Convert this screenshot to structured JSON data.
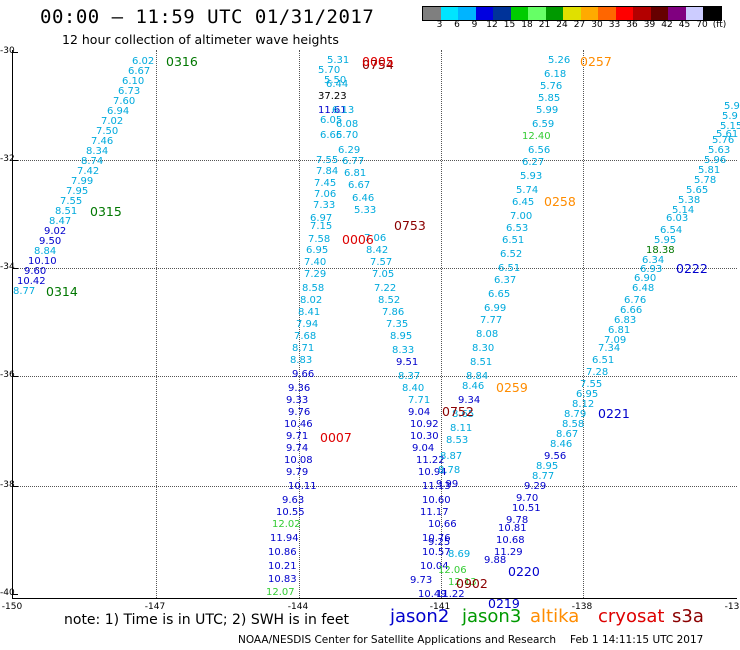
{
  "header": {
    "title": "00:00 – 11:59 UTC 01/31/2017",
    "subtitle": "12 hour collection of altimeter wave heights"
  },
  "colorbar": {
    "colors": [
      "#7f7f7f",
      "#00e5ff",
      "#00b4ff",
      "#0000e0",
      "#003399",
      "#00cc00",
      "#66ff66",
      "#009900",
      "#e0e000",
      "#ffaa00",
      "#ff6600",
      "#ff0000",
      "#b30000",
      "#660000",
      "#800080",
      "#ccccff",
      "#000000"
    ],
    "labels": [
      "3",
      "6",
      "9",
      "12",
      "15",
      "18",
      "21",
      "24",
      "27",
      "30",
      "33",
      "36",
      "39",
      "42",
      "45",
      "70",
      "(ft)"
    ]
  },
  "axes": {
    "y_ticks": [
      "-30",
      "-32",
      "-34",
      "-36",
      "-38",
      "-40"
    ],
    "x_ticks": [
      "-150",
      "-147",
      "-144",
      "-141",
      "-138",
      "-13"
    ]
  },
  "footer": {
    "note": "note: 1) Time is in UTC; 2) SWH is in feet",
    "satellites": [
      {
        "name": "jason2",
        "color": "#0000cc"
      },
      {
        "name": "jason3",
        "color": "#009900"
      },
      {
        "name": "altika",
        "color": "#ff8c00"
      },
      {
        "name": "cryosat",
        "color": "#dd0000"
      },
      {
        "name": "s3a",
        "color": "#8b0000"
      }
    ],
    "credit": "NOAA/NESDIS Center for Satellite Applications and Research",
    "generated": "Feb  1 14:11:15 UTC 2017"
  },
  "colors": {
    "cyan": "#00aadd",
    "blue": "#0000cc",
    "navy": "#000080",
    "green": "#007700",
    "lightgreen": "#33cc33",
    "orange": "#ff8c00",
    "red": "#dd0000",
    "maroon": "#8b0000"
  },
  "track_labels": [
    {
      "text": "0316",
      "color": "#007700"
    },
    {
      "text": "0315",
      "color": "#007700"
    },
    {
      "text": "0314",
      "color": "#007700"
    },
    {
      "text": "0754",
      "color": "#8b0000"
    },
    {
      "text": "0005",
      "color": "#dd0000"
    },
    {
      "text": "0753",
      "color": "#8b0000"
    },
    {
      "text": "0006",
      "color": "#dd0000"
    },
    {
      "text": "0007",
      "color": "#dd0000"
    },
    {
      "text": "0752",
      "color": "#8b0000"
    },
    {
      "text": "0257",
      "color": "#ff8c00"
    },
    {
      "text": "0258",
      "color": "#ff8c00"
    },
    {
      "text": "0259",
      "color": "#ff8c00"
    },
    {
      "text": "0222",
      "color": "#0000cc"
    },
    {
      "text": "0221",
      "color": "#0000cc"
    },
    {
      "text": "0220",
      "color": "#0000cc"
    },
    {
      "text": "0219",
      "color": "#0000cc"
    },
    {
      "text": "0902",
      "color": "#8b0000"
    }
  ],
  "observations": [
    {
      "text": "6.02",
      "color": "#00aadd"
    },
    {
      "text": "6.67",
      "color": "#00aadd"
    },
    {
      "text": "6.10",
      "color": "#00aadd"
    },
    {
      "text": "6.73",
      "color": "#00aadd"
    },
    {
      "text": "7.60",
      "color": "#00aadd"
    },
    {
      "text": "6.94",
      "color": "#00aadd"
    },
    {
      "text": "7.02",
      "color": "#00aadd"
    },
    {
      "text": "7.50",
      "color": "#00aadd"
    },
    {
      "text": "7.46",
      "color": "#00aadd"
    },
    {
      "text": "8.34",
      "color": "#00aadd"
    },
    {
      "text": "8.74",
      "color": "#00aadd"
    },
    {
      "text": "7.42",
      "color": "#00aadd"
    },
    {
      "text": "7.99",
      "color": "#00aadd"
    },
    {
      "text": "7.95",
      "color": "#00aadd"
    },
    {
      "text": "7.55",
      "color": "#00aadd"
    },
    {
      "text": "8.51",
      "color": "#00aadd"
    },
    {
      "text": "8.47",
      "color": "#00aadd"
    },
    {
      "text": "9.02",
      "color": "#0000cc"
    },
    {
      "text": "9.50",
      "color": "#0000cc"
    },
    {
      "text": "8.84",
      "color": "#00aadd"
    },
    {
      "text": "10.10",
      "color": "#0000cc"
    },
    {
      "text": "9.60",
      "color": "#0000cc"
    },
    {
      "text": "10.42",
      "color": "#0000cc"
    },
    {
      "text": "8.77",
      "color": "#00aadd"
    },
    {
      "text": "5.31",
      "color": "#00aadd"
    },
    {
      "text": "5.70",
      "color": "#00aadd"
    },
    {
      "text": "5.50",
      "color": "#00aadd"
    },
    {
      "text": "6.44",
      "color": "#00aadd"
    },
    {
      "text": "37.23",
      "color": "#000000"
    },
    {
      "text": "11.61",
      "color": "#0000cc"
    },
    {
      "text": "6.13",
      "color": "#00aadd"
    },
    {
      "text": "6.08",
      "color": "#00aadd"
    },
    {
      "text": "6.05",
      "color": "#00aadd"
    },
    {
      "text": "6.66",
      "color": "#00aadd"
    },
    {
      "text": "5.70",
      "color": "#00aadd"
    },
    {
      "text": "6.29",
      "color": "#00aadd"
    },
    {
      "text": "6.77",
      "color": "#00aadd"
    },
    {
      "text": "7.55",
      "color": "#00aadd"
    },
    {
      "text": "7.84",
      "color": "#00aadd"
    },
    {
      "text": "6.81",
      "color": "#00aadd"
    },
    {
      "text": "7.45",
      "color": "#00aadd"
    },
    {
      "text": "6.67",
      "color": "#00aadd"
    },
    {
      "text": "7.06",
      "color": "#00aadd"
    },
    {
      "text": "6.46",
      "color": "#00aadd"
    },
    {
      "text": "7.33",
      "color": "#00aadd"
    },
    {
      "text": "5.33",
      "color": "#00aadd"
    },
    {
      "text": "6.97",
      "color": "#00aadd"
    },
    {
      "text": "7.15",
      "color": "#00aadd"
    },
    {
      "text": "7.58",
      "color": "#00aadd"
    },
    {
      "text": "7.06",
      "color": "#00aadd"
    },
    {
      "text": "6.95",
      "color": "#00aadd"
    },
    {
      "text": "8.42",
      "color": "#00aadd"
    },
    {
      "text": "7.40",
      "color": "#00aadd"
    },
    {
      "text": "7.57",
      "color": "#00aadd"
    },
    {
      "text": "7.29",
      "color": "#00aadd"
    },
    {
      "text": "7.05",
      "color": "#00aadd"
    },
    {
      "text": "8.58",
      "color": "#00aadd"
    },
    {
      "text": "7.22",
      "color": "#00aadd"
    },
    {
      "text": "8.02",
      "color": "#00aadd"
    },
    {
      "text": "8.52",
      "color": "#00aadd"
    },
    {
      "text": "8.41",
      "color": "#00aadd"
    },
    {
      "text": "7.86",
      "color": "#00aadd"
    },
    {
      "text": "7.94",
      "color": "#00aadd"
    },
    {
      "text": "7.35",
      "color": "#00aadd"
    },
    {
      "text": "7.68",
      "color": "#00aadd"
    },
    {
      "text": "8.95",
      "color": "#00aadd"
    },
    {
      "text": "8.71",
      "color": "#00aadd"
    },
    {
      "text": "8.33",
      "color": "#00aadd"
    },
    {
      "text": "8.83",
      "color": "#00aadd"
    },
    {
      "text": "9.51",
      "color": "#0000cc"
    },
    {
      "text": "9.66",
      "color": "#0000cc"
    },
    {
      "text": "8.37",
      "color": "#00aadd"
    },
    {
      "text": "9.36",
      "color": "#0000cc"
    },
    {
      "text": "8.40",
      "color": "#00aadd"
    },
    {
      "text": "9.33",
      "color": "#0000cc"
    },
    {
      "text": "7.71",
      "color": "#00aadd"
    },
    {
      "text": "9.76",
      "color": "#0000cc"
    },
    {
      "text": "9.04",
      "color": "#0000cc"
    },
    {
      "text": "10.46",
      "color": "#0000cc"
    },
    {
      "text": "10.92",
      "color": "#0000cc"
    },
    {
      "text": "9.71",
      "color": "#0000cc"
    },
    {
      "text": "10.30",
      "color": "#0000cc"
    },
    {
      "text": "9.74",
      "color": "#0000cc"
    },
    {
      "text": "9.04",
      "color": "#0000cc"
    },
    {
      "text": "10.08",
      "color": "#0000cc"
    },
    {
      "text": "11.22",
      "color": "#0000cc"
    },
    {
      "text": "9.79",
      "color": "#0000cc"
    },
    {
      "text": "10.94",
      "color": "#0000cc"
    },
    {
      "text": "10.11",
      "color": "#0000cc"
    },
    {
      "text": "11.13",
      "color": "#0000cc"
    },
    {
      "text": "9.63",
      "color": "#0000cc"
    },
    {
      "text": "10.60",
      "color": "#0000cc"
    },
    {
      "text": "10.55",
      "color": "#0000cc"
    },
    {
      "text": "11.17",
      "color": "#0000cc"
    },
    {
      "text": "12.02",
      "color": "#33cc33"
    },
    {
      "text": "10.66",
      "color": "#0000cc"
    },
    {
      "text": "11.94",
      "color": "#0000cc"
    },
    {
      "text": "10.76",
      "color": "#0000cc"
    },
    {
      "text": "10.86",
      "color": "#0000cc"
    },
    {
      "text": "10.57",
      "color": "#0000cc"
    },
    {
      "text": "10.21",
      "color": "#0000cc"
    },
    {
      "text": "10.04",
      "color": "#0000cc"
    },
    {
      "text": "10.83",
      "color": "#0000cc"
    },
    {
      "text": "9.73",
      "color": "#0000cc"
    },
    {
      "text": "12.07",
      "color": "#33cc33"
    },
    {
      "text": "10.49",
      "color": "#0000cc"
    },
    {
      "text": "5.26",
      "color": "#00aadd"
    },
    {
      "text": "6.18",
      "color": "#00aadd"
    },
    {
      "text": "5.76",
      "color": "#00aadd"
    },
    {
      "text": "5.85",
      "color": "#00aadd"
    },
    {
      "text": "5.99",
      "color": "#00aadd"
    },
    {
      "text": "6.59",
      "color": "#00aadd"
    },
    {
      "text": "12.40",
      "color": "#33cc33"
    },
    {
      "text": "6.56",
      "color": "#00aadd"
    },
    {
      "text": "6.27",
      "color": "#00aadd"
    },
    {
      "text": "5.93",
      "color": "#00aadd"
    },
    {
      "text": "5.74",
      "color": "#00aadd"
    },
    {
      "text": "6.45",
      "color": "#00aadd"
    },
    {
      "text": "7.00",
      "color": "#00aadd"
    },
    {
      "text": "6.53",
      "color": "#00aadd"
    },
    {
      "text": "6.51",
      "color": "#00aadd"
    },
    {
      "text": "6.52",
      "color": "#00aadd"
    },
    {
      "text": "6.51",
      "color": "#00aadd"
    },
    {
      "text": "6.37",
      "color": "#00aadd"
    },
    {
      "text": "6.65",
      "color": "#00aadd"
    },
    {
      "text": "6.99",
      "color": "#00aadd"
    },
    {
      "text": "7.77",
      "color": "#00aadd"
    },
    {
      "text": "8.08",
      "color": "#00aadd"
    },
    {
      "text": "8.30",
      "color": "#00aadd"
    },
    {
      "text": "8.51",
      "color": "#00aadd"
    },
    {
      "text": "8.84",
      "color": "#00aadd"
    },
    {
      "text": "8.46",
      "color": "#00aadd"
    },
    {
      "text": "9.34",
      "color": "#0000cc"
    },
    {
      "text": "8.65",
      "color": "#00aadd"
    },
    {
      "text": "8.11",
      "color": "#00aadd"
    },
    {
      "text": "8.53",
      "color": "#00aadd"
    },
    {
      "text": "8.87",
      "color": "#00aadd"
    },
    {
      "text": "8.78",
      "color": "#00aadd"
    },
    {
      "text": "9.99",
      "color": "#0000cc"
    },
    {
      "text": "9.25",
      "color": "#0000cc"
    },
    {
      "text": "8.69",
      "color": "#00aadd"
    },
    {
      "text": "12.06",
      "color": "#33cc33"
    },
    {
      "text": "11.22",
      "color": "#0000cc"
    },
    {
      "text": "12.13",
      "color": "#33cc33"
    },
    {
      "text": "5.9",
      "color": "#00aadd"
    },
    {
      "text": "5.9",
      "color": "#00aadd"
    },
    {
      "text": "5.15",
      "color": "#00aadd"
    },
    {
      "text": "5.61",
      "color": "#00aadd"
    },
    {
      "text": "5.76",
      "color": "#00aadd"
    },
    {
      "text": "5.63",
      "color": "#00aadd"
    },
    {
      "text": "5.96",
      "color": "#00aadd"
    },
    {
      "text": "5.81",
      "color": "#00aadd"
    },
    {
      "text": "5.78",
      "color": "#00aadd"
    },
    {
      "text": "5.65",
      "color": "#00aadd"
    },
    {
      "text": "5.38",
      "color": "#00aadd"
    },
    {
      "text": "5.14",
      "color": "#00aadd"
    },
    {
      "text": "6.03",
      "color": "#00aadd"
    },
    {
      "text": "6.54",
      "color": "#00aadd"
    },
    {
      "text": "5.95",
      "color": "#00aadd"
    },
    {
      "text": "18.38",
      "color": "#007700"
    },
    {
      "text": "6.34",
      "color": "#00aadd"
    },
    {
      "text": "6.93",
      "color": "#00aadd"
    },
    {
      "text": "6.90",
      "color": "#00aadd"
    },
    {
      "text": "6.48",
      "color": "#00aadd"
    },
    {
      "text": "6.76",
      "color": "#00aadd"
    },
    {
      "text": "6.66",
      "color": "#00aadd"
    },
    {
      "text": "6.83",
      "color": "#00aadd"
    },
    {
      "text": "6.81",
      "color": "#00aadd"
    },
    {
      "text": "7.09",
      "color": "#00aadd"
    },
    {
      "text": "7.34",
      "color": "#00aadd"
    },
    {
      "text": "6.51",
      "color": "#00aadd"
    },
    {
      "text": "7.28",
      "color": "#00aadd"
    },
    {
      "text": "7.55",
      "color": "#00aadd"
    },
    {
      "text": "6.95",
      "color": "#00aadd"
    },
    {
      "text": "8.12",
      "color": "#00aadd"
    },
    {
      "text": "8.79",
      "color": "#00aadd"
    },
    {
      "text": "8.58",
      "color": "#00aadd"
    },
    {
      "text": "8.67",
      "color": "#00aadd"
    },
    {
      "text": "8.46",
      "color": "#00aadd"
    },
    {
      "text": "9.56",
      "color": "#0000cc"
    },
    {
      "text": "8.95",
      "color": "#00aadd"
    },
    {
      "text": "8.77",
      "color": "#00aadd"
    },
    {
      "text": "9.29",
      "color": "#0000cc"
    },
    {
      "text": "9.70",
      "color": "#0000cc"
    },
    {
      "text": "10.51",
      "color": "#0000cc"
    },
    {
      "text": "9.78",
      "color": "#0000cc"
    },
    {
      "text": "10.81",
      "color": "#0000cc"
    },
    {
      "text": "10.68",
      "color": "#0000cc"
    },
    {
      "text": "11.29",
      "color": "#0000cc"
    },
    {
      "text": "9.88",
      "color": "#0000cc"
    }
  ]
}
